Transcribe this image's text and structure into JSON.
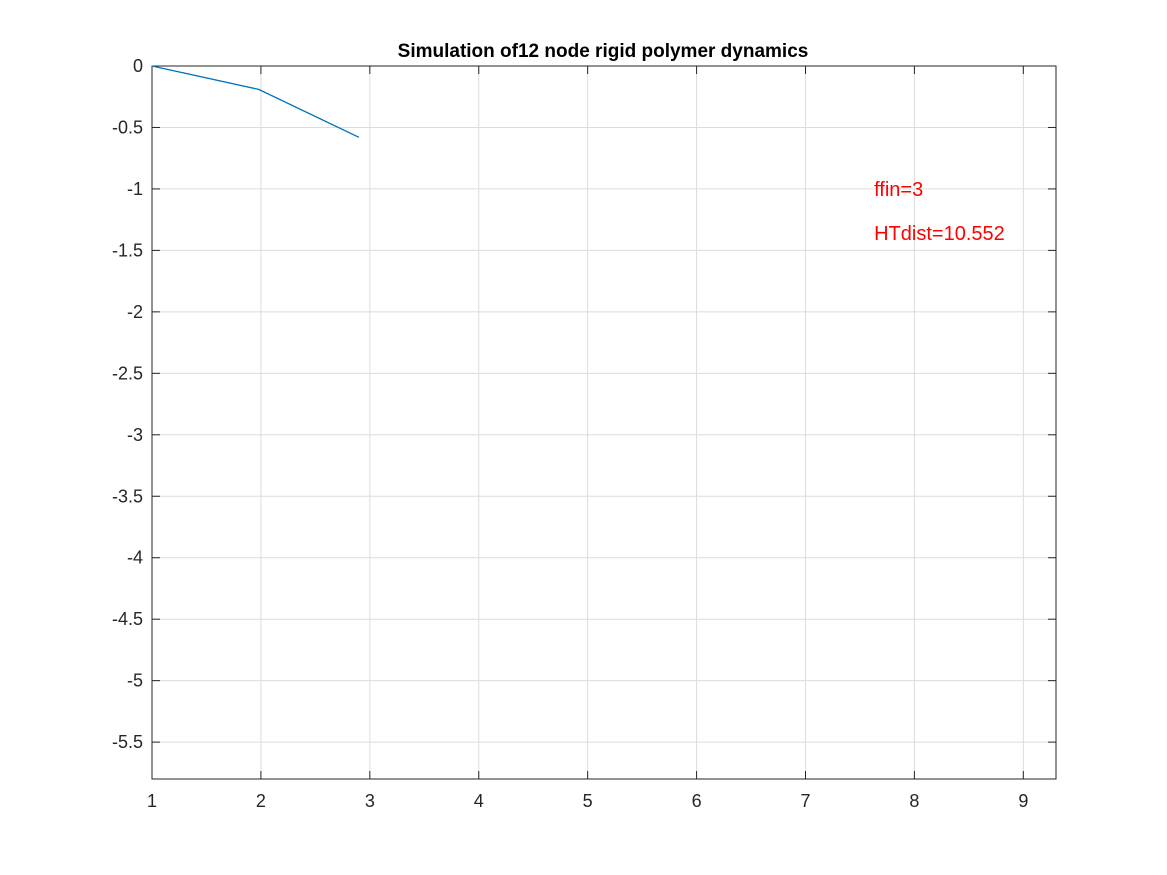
{
  "chart_data": {
    "type": "line",
    "title": "Simulation of12 node rigid polymer dynamics",
    "xlabel": "",
    "ylabel": "",
    "xlim": [
      1,
      9.3
    ],
    "ylim": [
      -5.8,
      0
    ],
    "grid": true,
    "x_ticks": [
      1,
      2,
      3,
      4,
      5,
      6,
      7,
      8,
      9
    ],
    "y_ticks": [
      0,
      -0.5,
      -1,
      -1.5,
      -2,
      -2.5,
      -3,
      -3.5,
      -4,
      -4.5,
      -5,
      -5.5
    ],
    "series": [
      {
        "color": "#0072bd",
        "x": [
          1,
          1.98,
          2.9
        ],
        "y": [
          0,
          -0.19,
          -0.58
        ]
      }
    ],
    "annotations": [
      {
        "text": "ffin=3",
        "x": 7.63,
        "y": -1.0,
        "color": "#ff0000"
      },
      {
        "text": "HTdist=10.552",
        "x": 7.63,
        "y": -1.36,
        "color": "#ff0000"
      }
    ]
  }
}
